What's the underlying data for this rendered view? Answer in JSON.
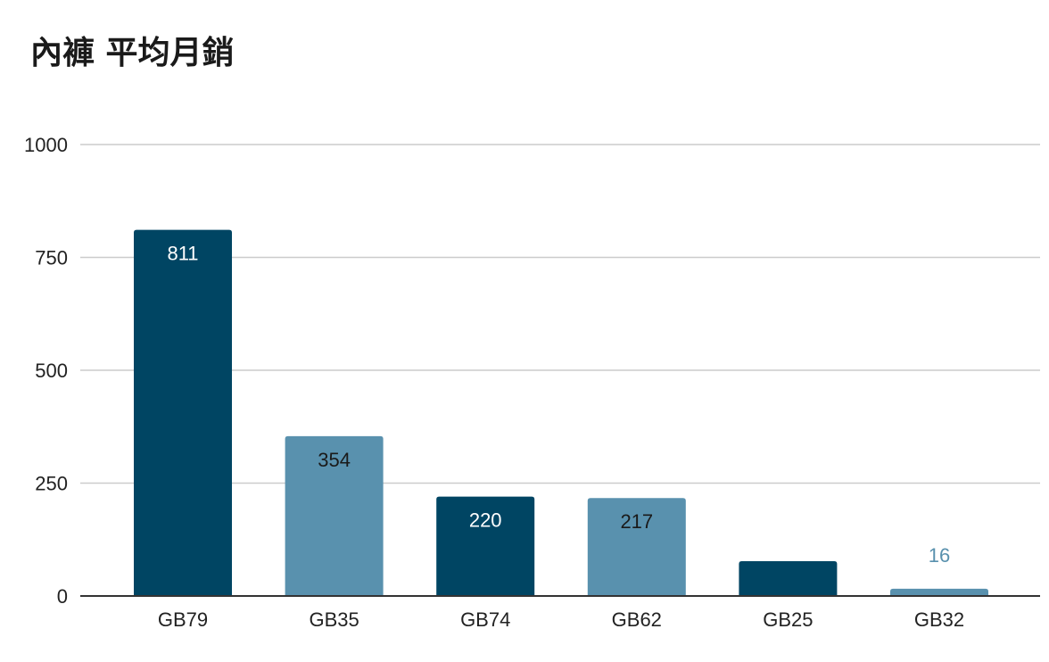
{
  "chart_data": {
    "type": "bar",
    "title": "內褲 平均月銷",
    "xlabel": "",
    "ylabel": "",
    "categories": [
      "GB79",
      "GB35",
      "GB74",
      "GB62",
      "GB25",
      "GB32"
    ],
    "values": [
      811,
      354,
      220,
      217,
      77,
      16
    ],
    "ylim": [
      0,
      1000
    ],
    "yticks": [
      0,
      250,
      500,
      750,
      1000
    ],
    "grid": true,
    "legend": "none",
    "bar_colors": [
      "#004563",
      "#5991ae",
      "#004563",
      "#5991ae",
      "#004563",
      "#5991ae"
    ],
    "label_colors": [
      "#ffffff",
      "#1a1a1a",
      "#ffffff",
      "#1a1a1a",
      "#ffffff",
      "#5991ae"
    ],
    "grid_color": "#cccccc",
    "axis_color": "#333333"
  }
}
